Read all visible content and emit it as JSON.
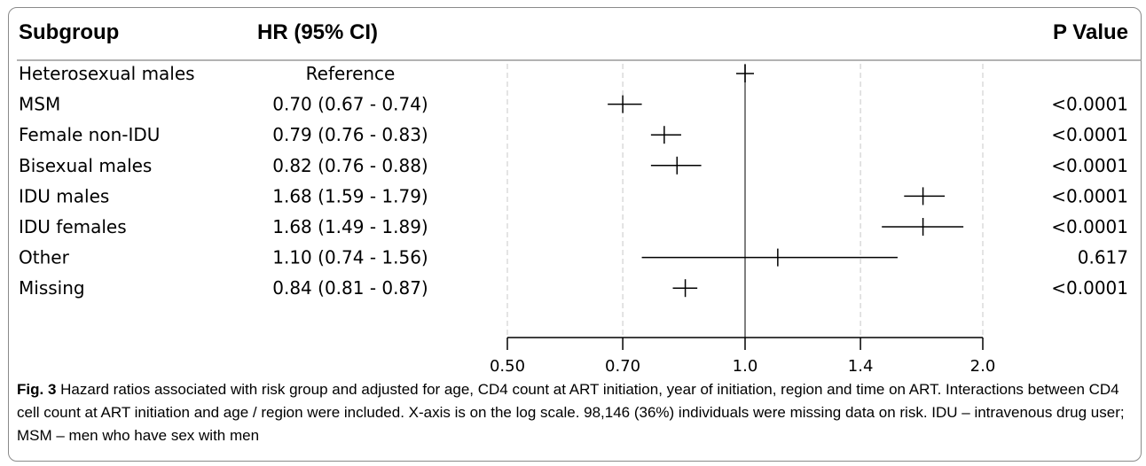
{
  "headers": {
    "subgroup": "Subgroup",
    "hr": "HR (95% CI)",
    "p": "P Value"
  },
  "caption": {
    "label": "Fig. 3",
    "text": "Hazard ratios associated with risk group and adjusted for age, CD4 count at ART initiation, year of initiation, region and time on ART. Interactions between CD4 cell count at ART initiation and age / region were included. X-axis is on the log scale. 98,146 (36%) individuals were missing data on risk. IDU – intravenous drug user; MSM – men who have sex with men"
  },
  "chart_data": {
    "type": "forest",
    "xscale": "log",
    "xlim": [
      0.5,
      2.0
    ],
    "reference_line": 1.0,
    "xticks": [
      0.5,
      0.7,
      1.0,
      1.4,
      2.0
    ],
    "xtick_labels": [
      "0.50",
      "0.70",
      "1.0",
      "1.4",
      "2.0"
    ],
    "grid_lines": [
      0.5,
      0.7,
      1.4,
      2.0
    ],
    "rows": [
      {
        "subgroup": "Heterosexual males",
        "hr_text": "Reference",
        "p": "",
        "hr": 1.0,
        "lo": 1.0,
        "hi": 1.0
      },
      {
        "subgroup": "MSM",
        "hr_text": "0.70 (0.67 - 0.74)",
        "p": "<0.0001",
        "hr": 0.7,
        "lo": 0.67,
        "hi": 0.74
      },
      {
        "subgroup": "Female non-IDU",
        "hr_text": "0.79 (0.76 - 0.83)",
        "p": "<0.0001",
        "hr": 0.79,
        "lo": 0.76,
        "hi": 0.83
      },
      {
        "subgroup": "Bisexual males",
        "hr_text": "0.82 (0.76 - 0.88)",
        "p": "<0.0001",
        "hr": 0.82,
        "lo": 0.76,
        "hi": 0.88
      },
      {
        "subgroup": "IDU males",
        "hr_text": "1.68 (1.59 - 1.79)",
        "p": "<0.0001",
        "hr": 1.68,
        "lo": 1.59,
        "hi": 1.79
      },
      {
        "subgroup": "IDU females",
        "hr_text": "1.68 (1.49 - 1.89)",
        "p": "<0.0001",
        "hr": 1.68,
        "lo": 1.49,
        "hi": 1.89
      },
      {
        "subgroup": "Other",
        "hr_text": "1.10 (0.74 - 1.56)",
        "p": "0.617",
        "hr": 1.1,
        "lo": 0.74,
        "hi": 1.56
      },
      {
        "subgroup": "Missing",
        "hr_text": "0.84 (0.81 - 0.87)",
        "p": "<0.0001",
        "hr": 0.84,
        "lo": 0.81,
        "hi": 0.87
      }
    ]
  }
}
